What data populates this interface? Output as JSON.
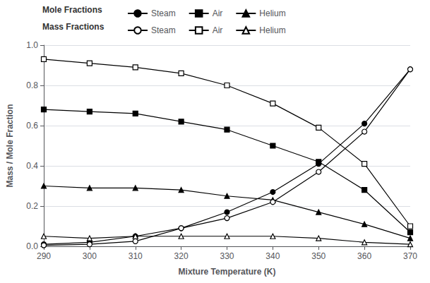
{
  "chart_data": {
    "type": "line",
    "xlabel": "Mixture Temperature (K)",
    "ylabel": "Mass / Mole Fraction",
    "annotations": [
      "Mole Fractions",
      "Mass Fractions"
    ],
    "x": [
      290,
      300,
      310,
      320,
      330,
      340,
      350,
      360,
      370
    ],
    "series": [
      {
        "name": "Steam",
        "color": "#000000",
        "marker": "circle",
        "values": [
          0.01,
          0.02,
          0.05,
          0.09,
          0.17,
          0.27,
          0.41,
          0.61,
          0.88
        ]
      },
      {
        "name": "Air",
        "color": "#000000",
        "marker": "square",
        "values": [
          0.68,
          0.67,
          0.66,
          0.62,
          0.58,
          0.5,
          0.42,
          0.28,
          0.07
        ]
      },
      {
        "name": "Helium",
        "color": "#000000",
        "marker": "triangle",
        "values": [
          0.3,
          0.29,
          0.29,
          0.28,
          0.25,
          0.23,
          0.17,
          0.11,
          0.04
        ]
      },
      {
        "name": "Steam",
        "color": "#000000",
        "marker": "open_circle",
        "values": [
          0.005,
          0.01,
          0.025,
          0.09,
          0.14,
          0.22,
          0.37,
          0.57,
          0.88
        ]
      },
      {
        "name": "Air",
        "color": "#000000",
        "marker": "open_square",
        "values": [
          0.93,
          0.91,
          0.89,
          0.86,
          0.8,
          0.71,
          0.59,
          0.41,
          0.1
        ]
      },
      {
        "name": "Helium",
        "color": "#000000",
        "marker": "open_triangle",
        "values": [
          0.05,
          0.04,
          0.05,
          0.05,
          0.05,
          0.05,
          0.04,
          0.02,
          0.01
        ]
      }
    ],
    "xlim": [
      290,
      370
    ],
    "ylim": [
      0.0,
      1.0
    ],
    "xticks": [
      290,
      300,
      310,
      320,
      330,
      340,
      350,
      360,
      370
    ],
    "yticks": [
      {
        "value": 0,
        "label": "0.0"
      },
      0.2,
      0.4,
      0.6,
      0.8,
      {
        "value": 1,
        "label": "1.0"
      }
    ],
    "grid": "y"
  }
}
